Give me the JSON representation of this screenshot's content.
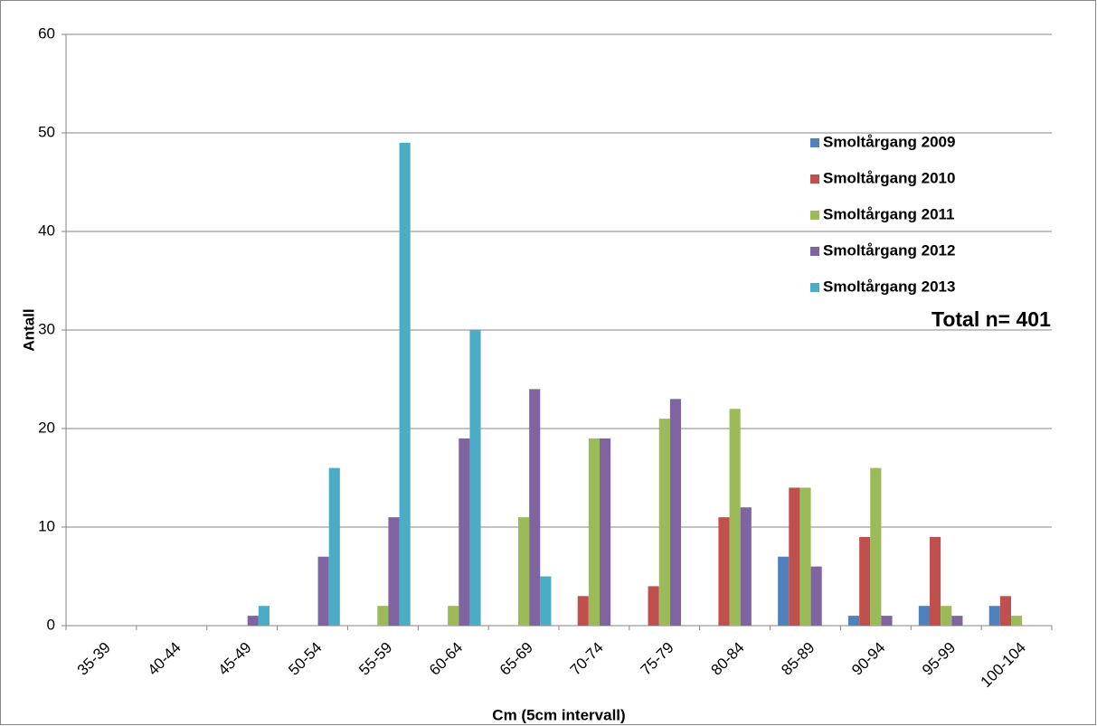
{
  "chart_data": {
    "type": "bar",
    "x_label": "Cm (5cm intervall)",
    "y_label": "Antall",
    "annotation": "Total n= 401",
    "categories": [
      "35-39",
      "40-44",
      "45-49",
      "50-54",
      "55-59",
      "60-64",
      "65-69",
      "70-74",
      "75-79",
      "80-84",
      "85-89",
      "90-94",
      "95-99",
      "100-104"
    ],
    "series": [
      {
        "name": "Smoltårgang 2009",
        "color": "#4f81bd",
        "values": [
          0,
          0,
          0,
          0,
          0,
          0,
          0,
          0,
          0,
          0,
          7,
          1,
          2,
          2
        ]
      },
      {
        "name": "Smoltårgang 2010",
        "color": "#c0504d",
        "values": [
          0,
          0,
          0,
          0,
          0,
          0,
          0,
          3,
          4,
          11,
          14,
          9,
          9,
          3
        ]
      },
      {
        "name": "Smoltårgang 2011",
        "color": "#9bbb59",
        "values": [
          0,
          0,
          0,
          0,
          2,
          2,
          11,
          19,
          21,
          22,
          14,
          16,
          2,
          1
        ]
      },
      {
        "name": "Smoltårgang 2012",
        "color": "#8064a2",
        "values": [
          0,
          0,
          1,
          7,
          11,
          19,
          24,
          19,
          23,
          12,
          6,
          1,
          1,
          0
        ]
      },
      {
        "name": "Smoltårgang 2013",
        "color": "#4bacc6",
        "values": [
          0,
          0,
          2,
          16,
          49,
          30,
          5,
          0,
          0,
          0,
          0,
          0,
          0,
          0
        ]
      }
    ],
    "ylim": [
      0,
      60
    ],
    "yticks": [
      0,
      10,
      20,
      30,
      40,
      50,
      60
    ],
    "grid": true,
    "legend": "right"
  }
}
